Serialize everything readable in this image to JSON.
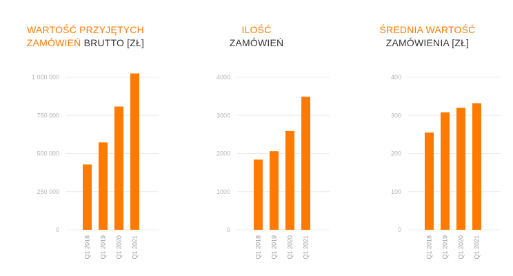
{
  "colors": {
    "bar": "#ff7a00",
    "title_accent": "#ff7a00",
    "title_text": "#333333",
    "grid": "#ececec",
    "tick": "#b5b5b5"
  },
  "charts": [
    {
      "title": {
        "line1_accent": "WARTOŚĆ PRZYJĘTYCH",
        "line2_accent": "ZAMÓWIEŃ",
        "line2_rest": " BRUTTO [ZŁ]"
      }
    },
    {
      "title": {
        "line1_accent": "ILOŚĆ",
        "line2_accent": "",
        "line2_rest": "ZAMÓWIEŃ"
      }
    },
    {
      "title": {
        "line1_accent": "ŚREDNIA WARTOŚĆ",
        "line2_accent": "",
        "line2_rest": "ZAMÓWIENIA [ZŁ]"
      }
    }
  ],
  "chart_data": [
    {
      "type": "bar",
      "title": "WARTOŚĆ PRZYJĘTYCH ZAMÓWIEŃ BRUTTO [ZŁ]",
      "categories": [
        "Q1 2018",
        "Q1 2019",
        "Q1 2020",
        "Q1 2021"
      ],
      "values": [
        428000,
        573000,
        808000,
        1025000
      ],
      "ylim": [
        0,
        1000000
      ],
      "yticks": [
        0,
        250000,
        500000,
        750000,
        1000000
      ],
      "ytick_labels": [
        "0",
        "250 000",
        "500 000",
        "750 000",
        "1 000 000"
      ],
      "grid": true
    },
    {
      "type": "bar",
      "title": "ILOŚĆ ZAMÓWIEŃ",
      "categories": [
        "Q1 2018",
        "Q1 2019",
        "Q1 2020",
        "Q1 2021"
      ],
      "values": [
        1840,
        2060,
        2590,
        3490
      ],
      "ylim": [
        0,
        4000
      ],
      "yticks": [
        0,
        1000,
        2000,
        3000,
        4000
      ],
      "ytick_labels": [
        "0",
        "1000",
        "2000",
        "3000",
        "4000"
      ],
      "grid": true
    },
    {
      "type": "bar",
      "title": "ŚREDNIA WARTOŚĆ ZAMÓWIENIA [ZŁ]",
      "categories": [
        "Q1 2018",
        "Q1 2019",
        "Q1 2020",
        "Q1 2021"
      ],
      "values": [
        255,
        308,
        320,
        332
      ],
      "ylim": [
        0,
        400
      ],
      "yticks": [
        0,
        100,
        200,
        300,
        400
      ],
      "ytick_labels": [
        "0",
        "100",
        "200",
        "300",
        "400"
      ],
      "grid": true
    }
  ]
}
